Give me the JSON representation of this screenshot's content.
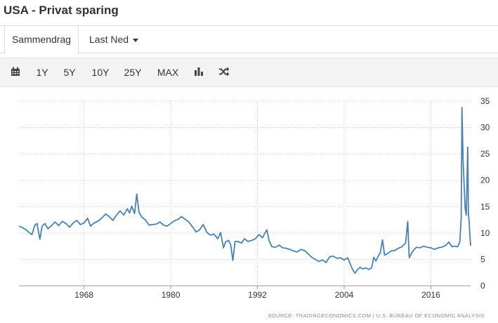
{
  "page": {
    "title": "USA - Privat sparing"
  },
  "tabs": {
    "summary_label": "Sammendrag",
    "download_label": "Last Ned"
  },
  "toolbar": {
    "calendar_icon": "calendar-icon",
    "ranges": [
      "1Y",
      "5Y",
      "10Y",
      "25Y",
      "MAX"
    ],
    "bar_chart_icon": "bar-chart-icon",
    "shuffle_icon": "shuffle-icon"
  },
  "source": {
    "prefix": "SOURCE: TRADINGECONOMICS.COM",
    "separator": "|",
    "agency": "U.S. BUREAU OF ECONOMIC ANALYSIS"
  },
  "colors": {
    "line": "#4682b4",
    "grid": "#cccccc",
    "toolbar_bg": "#f3f3f3",
    "text": "#333333"
  },
  "chart_data": {
    "type": "line",
    "title": "",
    "xlabel": "",
    "ylabel": "",
    "xlim": [
      1959,
      2021.5
    ],
    "ylim": [
      0,
      35
    ],
    "x_ticks": [
      1968,
      1980,
      1992,
      2004,
      2016
    ],
    "y_ticks": [
      0,
      5,
      10,
      15,
      20,
      25,
      30,
      35
    ],
    "grid": {
      "vertical": true,
      "horizontal": true,
      "style": "dotted"
    },
    "y_axis_position": "right",
    "legend": "none",
    "series": [
      {
        "color": "#4682b4",
        "points": [
          [
            1959.0,
            11.3
          ],
          [
            1959.5,
            11.0
          ],
          [
            1960.0,
            10.6
          ],
          [
            1960.4,
            10.1
          ],
          [
            1960.8,
            9.7
          ],
          [
            1961.2,
            11.5
          ],
          [
            1961.5,
            11.8
          ],
          [
            1961.9,
            8.8
          ],
          [
            1962.2,
            11.3
          ],
          [
            1962.6,
            11.8
          ],
          [
            1963.0,
            10.8
          ],
          [
            1963.5,
            11.4
          ],
          [
            1964.0,
            12.1
          ],
          [
            1964.5,
            11.4
          ],
          [
            1965.0,
            12.2
          ],
          [
            1965.5,
            11.8
          ],
          [
            1966.0,
            11.1
          ],
          [
            1966.5,
            11.9
          ],
          [
            1967.0,
            12.4
          ],
          [
            1967.5,
            11.6
          ],
          [
            1968.0,
            11.9
          ],
          [
            1968.5,
            12.8
          ],
          [
            1968.9,
            11.3
          ],
          [
            1969.4,
            11.9
          ],
          [
            1970.0,
            12.3
          ],
          [
            1970.5,
            12.9
          ],
          [
            1971.0,
            13.6
          ],
          [
            1971.5,
            13.1
          ],
          [
            1972.0,
            12.4
          ],
          [
            1972.5,
            13.4
          ],
          [
            1973.0,
            14.2
          ],
          [
            1973.5,
            13.4
          ],
          [
            1974.0,
            14.6
          ],
          [
            1974.3,
            13.8
          ],
          [
            1974.6,
            15.1
          ],
          [
            1975.0,
            13.7
          ],
          [
            1975.3,
            17.4
          ],
          [
            1975.6,
            14.0
          ],
          [
            1976.0,
            13.0
          ],
          [
            1976.5,
            12.5
          ],
          [
            1977.0,
            11.5
          ],
          [
            1977.5,
            11.6
          ],
          [
            1978.0,
            11.7
          ],
          [
            1978.5,
            12.1
          ],
          [
            1979.0,
            11.5
          ],
          [
            1979.5,
            11.3
          ],
          [
            1980.0,
            11.8
          ],
          [
            1980.5,
            12.3
          ],
          [
            1981.0,
            12.6
          ],
          [
            1981.5,
            13.1
          ],
          [
            1982.0,
            12.6
          ],
          [
            1982.5,
            12.1
          ],
          [
            1983.0,
            11.2
          ],
          [
            1983.5,
            10.2
          ],
          [
            1984.0,
            10.6
          ],
          [
            1984.5,
            11.6
          ],
          [
            1985.0,
            10.1
          ],
          [
            1985.5,
            9.6
          ],
          [
            1986.0,
            9.8
          ],
          [
            1986.5,
            8.9
          ],
          [
            1986.9,
            10.1
          ],
          [
            1987.3,
            7.2
          ],
          [
            1987.6,
            8.3
          ],
          [
            1988.0,
            8.6
          ],
          [
            1988.3,
            7.8
          ],
          [
            1988.6,
            4.8
          ],
          [
            1988.9,
            8.4
          ],
          [
            1989.3,
            8.4
          ],
          [
            1989.8,
            8.1
          ],
          [
            1990.2,
            8.9
          ],
          [
            1990.7,
            8.4
          ],
          [
            1991.2,
            8.6
          ],
          [
            1991.7,
            8.9
          ],
          [
            1992.2,
            9.7
          ],
          [
            1992.7,
            9.1
          ],
          [
            1993.0,
            9.9
          ],
          [
            1993.3,
            10.6
          ],
          [
            1993.6,
            8.6
          ],
          [
            1994.0,
            7.4
          ],
          [
            1994.5,
            7.3
          ],
          [
            1995.0,
            7.7
          ],
          [
            1995.5,
            7.2
          ],
          [
            1996.0,
            7.1
          ],
          [
            1996.5,
            6.9
          ],
          [
            1997.0,
            6.6
          ],
          [
            1997.5,
            6.4
          ],
          [
            1998.0,
            6.9
          ],
          [
            1998.5,
            6.7
          ],
          [
            1999.0,
            6.1
          ],
          [
            1999.5,
            5.4
          ],
          [
            2000.0,
            5.0
          ],
          [
            2000.5,
            4.6
          ],
          [
            2001.0,
            4.9
          ],
          [
            2001.5,
            4.4
          ],
          [
            2002.0,
            5.5
          ],
          [
            2002.5,
            5.6
          ],
          [
            2003.0,
            5.2
          ],
          [
            2003.5,
            5.3
          ],
          [
            2004.0,
            4.9
          ],
          [
            2004.5,
            5.3
          ],
          [
            2005.0,
            3.6
          ],
          [
            2005.2,
            3.0
          ],
          [
            2005.5,
            2.4
          ],
          [
            2005.8,
            3.0
          ],
          [
            2006.2,
            3.5
          ],
          [
            2006.6,
            3.2
          ],
          [
            2007.0,
            3.4
          ],
          [
            2007.4,
            3.1
          ],
          [
            2007.8,
            3.4
          ],
          [
            2008.1,
            5.4
          ],
          [
            2008.4,
            4.7
          ],
          [
            2008.7,
            5.6
          ],
          [
            2009.0,
            6.3
          ],
          [
            2009.3,
            8.7
          ],
          [
            2009.6,
            5.8
          ],
          [
            2010.0,
            6.1
          ],
          [
            2010.5,
            6.6
          ],
          [
            2011.0,
            6.7
          ],
          [
            2011.5,
            7.1
          ],
          [
            2012.0,
            7.4
          ],
          [
            2012.5,
            8.1
          ],
          [
            2012.8,
            12.2
          ],
          [
            2013.0,
            5.3
          ],
          [
            2013.5,
            6.6
          ],
          [
            2014.0,
            7.3
          ],
          [
            2014.5,
            7.2
          ],
          [
            2015.0,
            7.5
          ],
          [
            2015.5,
            7.3
          ],
          [
            2016.0,
            7.2
          ],
          [
            2016.5,
            6.9
          ],
          [
            2017.0,
            7.2
          ],
          [
            2017.5,
            7.3
          ],
          [
            2018.0,
            7.6
          ],
          [
            2018.5,
            8.3
          ],
          [
            2018.9,
            7.4
          ],
          [
            2019.3,
            7.5
          ],
          [
            2019.7,
            7.4
          ],
          [
            2020.0,
            8.3
          ],
          [
            2020.2,
            12.9
          ],
          [
            2020.3,
            33.8
          ],
          [
            2020.45,
            24.2
          ],
          [
            2020.6,
            19.4
          ],
          [
            2020.75,
            14.6
          ],
          [
            2020.9,
            13.4
          ],
          [
            2021.0,
            19.9
          ],
          [
            2021.1,
            26.3
          ],
          [
            2021.2,
            13.6
          ],
          [
            2021.3,
            12.3
          ],
          [
            2021.4,
            9.5
          ],
          [
            2021.5,
            7.6
          ]
        ]
      }
    ]
  }
}
